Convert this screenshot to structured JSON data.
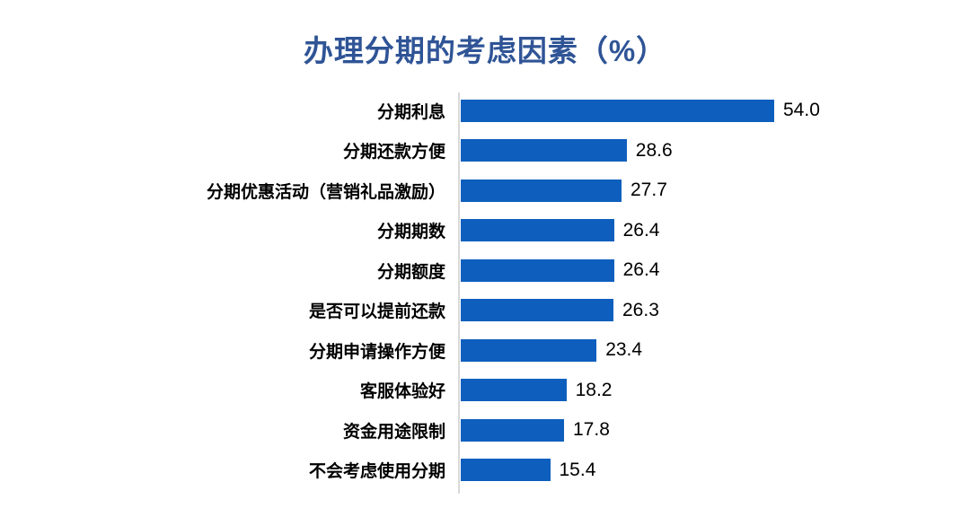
{
  "title": "办理分期的考虑因素（%）",
  "colors": {
    "bar": "#0e5fbd",
    "title_text": "#2f5496",
    "axis_line": "#d9d9d9",
    "label_text": "#000000",
    "value_text": "#000000",
    "background": "#ffffff"
  },
  "chart_data": {
    "type": "bar",
    "orientation": "horizontal",
    "title": "办理分期的考虑因素（%）",
    "categories": [
      "分期利息",
      "分期还款方便",
      "分期优惠活动（营销礼品激励）",
      "分期期数",
      "分期额度",
      "是否可以提前还款",
      "分期申请操作方便",
      "客服体验好",
      "资金用途限制",
      "不会考虑使用分期"
    ],
    "values": [
      54.0,
      28.6,
      27.7,
      26.4,
      26.4,
      26.3,
      23.4,
      18.2,
      17.8,
      15.4
    ],
    "value_labels": [
      "54.0",
      "28.6",
      "27.7",
      "26.4",
      "26.4",
      "26.3",
      "23.4",
      "18.2",
      "17.8",
      "15.4"
    ],
    "xlabel": "",
    "ylabel": "",
    "xlim": [
      0,
      54
    ],
    "grid": false,
    "legend": false,
    "value_labels_position": "right-of-bar"
  }
}
